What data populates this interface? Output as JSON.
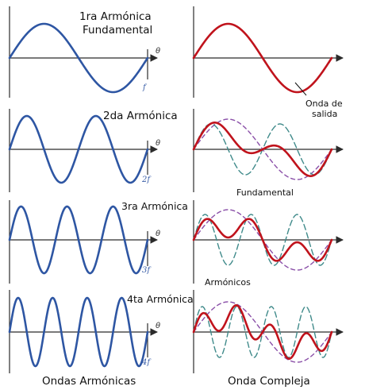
{
  "rows": [
    {
      "n": 1,
      "title_line1": "1ra Armónica",
      "title_line2": "Fundamental",
      "freq_label": "f"
    },
    {
      "n": 2,
      "title_line1": "2da Armónica",
      "title_line2": "",
      "freq_label": "2f"
    },
    {
      "n": 3,
      "title_line1": "3ra Armónica",
      "title_line2": "",
      "freq_label": "3f"
    },
    {
      "n": 4,
      "title_line1": "4ta Armónica",
      "title_line2": "",
      "freq_label": "4f"
    }
  ],
  "axis_symbol": "θ",
  "annotations": {
    "output_line1": "Onda de",
    "output_line2": "salida",
    "fundamental": "Fundamental",
    "harmonics": "Armónicos"
  },
  "footer": {
    "left": "Ondas Armónicas",
    "right": "Onda Compleja"
  },
  "colors": {
    "harmonic_wave": "#2e56a3",
    "complex_wave": "#c0131c",
    "fundamental_dashed": "#8a4fa8",
    "harmonic_dashed": "#3f8a8a",
    "axis": "#2b2b2b"
  }
}
